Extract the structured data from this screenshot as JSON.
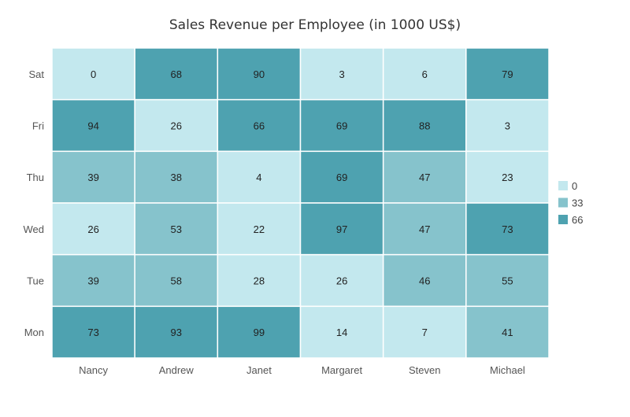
{
  "chart_data": {
    "type": "heatmap",
    "title": "Sales Revenue per Employee (in 1000 US$)",
    "x_categories": [
      "Nancy",
      "Andrew",
      "Janet",
      "Margaret",
      "Steven",
      "Michael"
    ],
    "y_categories": [
      "Sat",
      "Fri",
      "Thu",
      "Wed",
      "Tue",
      "Mon"
    ],
    "values": [
      [
        0,
        68,
        90,
        3,
        6,
        79
      ],
      [
        94,
        26,
        66,
        69,
        88,
        3
      ],
      [
        39,
        38,
        4,
        69,
        47,
        23
      ],
      [
        26,
        53,
        22,
        97,
        47,
        73
      ],
      [
        39,
        58,
        28,
        26,
        46,
        55
      ],
      [
        73,
        93,
        99,
        14,
        7,
        41
      ]
    ],
    "color_scale": [
      {
        "from": 0,
        "label": "0",
        "color": "#c3e8ee"
      },
      {
        "from": 33,
        "label": "33",
        "color": "#86c3cc"
      },
      {
        "from": 66,
        "label": "66",
        "color": "#4ea2b0"
      }
    ],
    "legend_position": "right",
    "cell_border_color": "#ffffff"
  }
}
